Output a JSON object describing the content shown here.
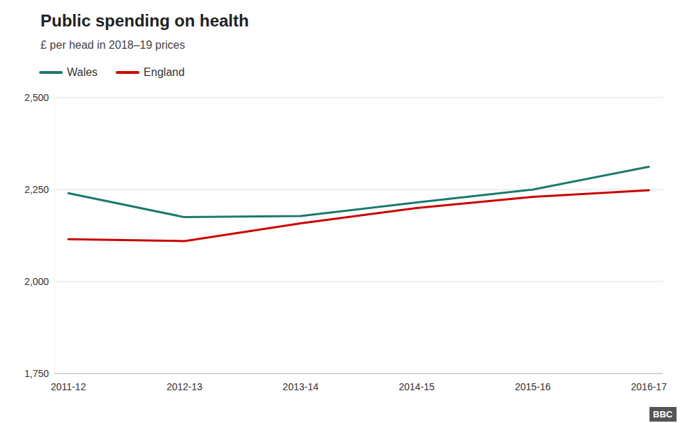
{
  "chart_data": {
    "type": "line",
    "title": "Public spending on health",
    "subtitle": "£ per head in 2018–19 prices",
    "categories": [
      "2011-12",
      "2012-13",
      "2013-14",
      "2014-15",
      "2015-16",
      "2016-17"
    ],
    "series": [
      {
        "name": "Wales",
        "color": "#1a7a6e",
        "values": [
          2240,
          2175,
          2178,
          2215,
          2250,
          2312
        ]
      },
      {
        "name": "England",
        "color": "#cc0000",
        "values": [
          2115,
          2110,
          2158,
          2200,
          2230,
          2248
        ]
      }
    ],
    "ylim": [
      1750,
      2500
    ],
    "yticks": [
      {
        "value": 1750,
        "label": "1,750"
      },
      {
        "value": 2000,
        "label": "2,000"
      },
      {
        "value": 2250,
        "label": "2,250"
      },
      {
        "value": 2500,
        "label": "2,500"
      }
    ],
    "grid": true,
    "legend": "top-left",
    "annotations": [
      "BBC"
    ]
  }
}
